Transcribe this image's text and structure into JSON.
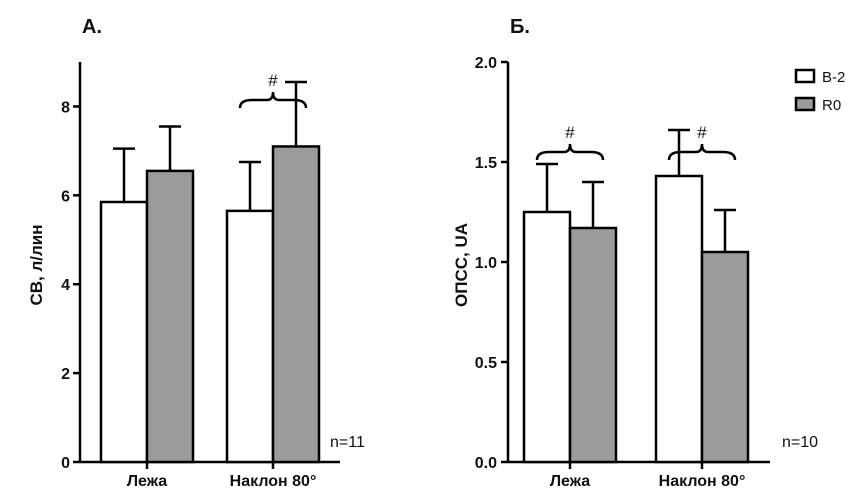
{
  "colors": {
    "B-2": "#ffffff",
    "R0": "#9b9b9b",
    "stroke": "#000000"
  },
  "legend": {
    "placement": "top-right",
    "items": [
      "B-2",
      "R0"
    ]
  },
  "chart_data": [
    {
      "type": "bar",
      "panel_label": "А.",
      "ylabel": "СВ, л/лин",
      "ylim": [
        0,
        9
      ],
      "yticks": [
        "0",
        "2",
        "4",
        "6",
        "8"
      ],
      "categories": [
        "Лежа",
        "Наклон 80°"
      ],
      "series": [
        {
          "name": "B-2",
          "values": [
            5.85,
            5.65
          ],
          "errors": [
            1.2,
            1.1
          ]
        },
        {
          "name": "R0",
          "values": [
            6.55,
            7.1
          ],
          "errors": [
            1.0,
            1.45
          ]
        }
      ],
      "annotations": [
        {
          "text": "#",
          "category": "Наклон 80°"
        }
      ],
      "note": "n=11"
    },
    {
      "type": "bar",
      "panel_label": "Б.",
      "ylabel": "ОПСС, UA",
      "ylim": [
        0,
        2.0
      ],
      "yticks": [
        "0.0",
        "0.5",
        "1.0",
        "1.5",
        "2.0"
      ],
      "categories": [
        "Лежа",
        "Наклон 80°"
      ],
      "series": [
        {
          "name": "B-2",
          "values": [
            1.25,
            1.43
          ],
          "errors": [
            0.24,
            0.23
          ]
        },
        {
          "name": "R0",
          "values": [
            1.17,
            1.05
          ],
          "errors": [
            0.23,
            0.21
          ]
        }
      ],
      "annotations": [
        {
          "text": "#",
          "category": "Лежа"
        },
        {
          "text": "#",
          "category": "Наклон 80°"
        }
      ],
      "note": "n=10"
    }
  ]
}
